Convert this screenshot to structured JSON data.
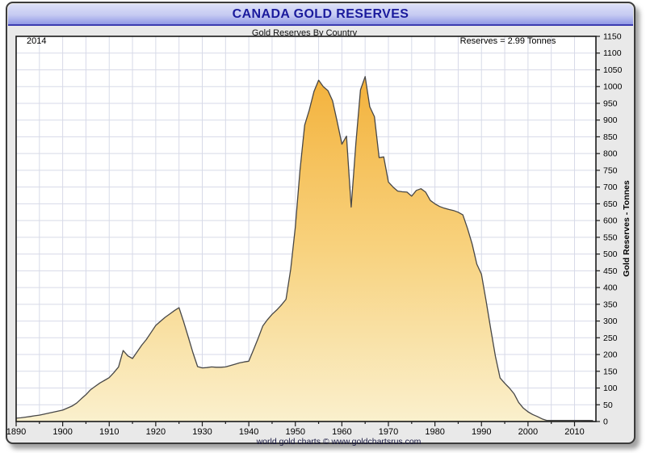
{
  "header": {
    "title": "CANADA GOLD RESERVES"
  },
  "subtitle": "Gold Reserves By Country",
  "annotations": {
    "year_label": "2014",
    "reserves_label": "Reserves = 2.99 Tonnes"
  },
  "footer": "world gold charts © www.goldchartsrus.com",
  "colors": {
    "header_text": "#1a1a9c",
    "panel_bg": "#e9e9e9",
    "grid": "#d7dae8",
    "plot_border": "#1a1a1a",
    "area_top": "#f3b23c",
    "area_mid": "#f8d27e",
    "area_bottom": "#faf0cd",
    "line": "#474747"
  },
  "chart_data": {
    "type": "area",
    "title": "CANADA GOLD RESERVES",
    "subtitle": "Gold Reserves By Country",
    "xlabel": "",
    "ylabel": "Gold Reserves - Tonnes",
    "xlim": [
      1890,
      2014
    ],
    "ylim": [
      0,
      1150
    ],
    "grid": true,
    "legend": "none",
    "x_tick_step": 10,
    "x_minor_tick_step": 5,
    "y_tick_step": 50,
    "x_ticks": [
      1890,
      1900,
      1910,
      1920,
      1930,
      1940,
      1950,
      1960,
      1970,
      1980,
      1990,
      2000,
      2010
    ],
    "y_ticks": [
      0,
      50,
      100,
      150,
      200,
      250,
      300,
      350,
      400,
      450,
      500,
      550,
      600,
      650,
      700,
      750,
      800,
      850,
      900,
      950,
      1000,
      1050,
      1100,
      1150
    ],
    "series": [
      {
        "name": "Canada Gold Reserves (Tonnes)",
        "points": [
          [
            1890,
            10
          ],
          [
            1891,
            11
          ],
          [
            1892,
            13
          ],
          [
            1893,
            15
          ],
          [
            1894,
            17
          ],
          [
            1895,
            19
          ],
          [
            1896,
            22
          ],
          [
            1897,
            25
          ],
          [
            1898,
            28
          ],
          [
            1899,
            31
          ],
          [
            1900,
            34
          ],
          [
            1901,
            40
          ],
          [
            1902,
            46
          ],
          [
            1903,
            55
          ],
          [
            1904,
            68
          ],
          [
            1905,
            80
          ],
          [
            1906,
            95
          ],
          [
            1907,
            105
          ],
          [
            1908,
            115
          ],
          [
            1909,
            123
          ],
          [
            1910,
            131
          ],
          [
            1911,
            146
          ],
          [
            1912,
            163
          ],
          [
            1913,
            212
          ],
          [
            1914,
            196
          ],
          [
            1915,
            188
          ],
          [
            1916,
            208
          ],
          [
            1917,
            228
          ],
          [
            1918,
            245
          ],
          [
            1919,
            266
          ],
          [
            1920,
            287
          ],
          [
            1921,
            299
          ],
          [
            1922,
            311
          ],
          [
            1923,
            321
          ],
          [
            1924,
            331
          ],
          [
            1925,
            340
          ],
          [
            1926,
            298
          ],
          [
            1927,
            252
          ],
          [
            1928,
            205
          ],
          [
            1929,
            164
          ],
          [
            1930,
            160
          ],
          [
            1931,
            161
          ],
          [
            1932,
            163
          ],
          [
            1933,
            162
          ],
          [
            1934,
            162
          ],
          [
            1935,
            163
          ],
          [
            1936,
            167
          ],
          [
            1937,
            171
          ],
          [
            1938,
            175
          ],
          [
            1939,
            178
          ],
          [
            1940,
            180
          ],
          [
            1941,
            214
          ],
          [
            1942,
            248
          ],
          [
            1943,
            285
          ],
          [
            1944,
            304
          ],
          [
            1945,
            320
          ],
          [
            1946,
            333
          ],
          [
            1947,
            348
          ],
          [
            1948,
            365
          ],
          [
            1949,
            455
          ],
          [
            1950,
            580
          ],
          [
            1951,
            750
          ],
          [
            1952,
            885
          ],
          [
            1953,
            930
          ],
          [
            1954,
            985
          ],
          [
            1955,
            1019
          ],
          [
            1956,
            1000
          ],
          [
            1957,
            988
          ],
          [
            1958,
            958
          ],
          [
            1959,
            895
          ],
          [
            1960,
            828
          ],
          [
            1961,
            852
          ],
          [
            1962,
            640
          ],
          [
            1963,
            830
          ],
          [
            1964,
            990
          ],
          [
            1965,
            1030
          ],
          [
            1966,
            940
          ],
          [
            1967,
            910
          ],
          [
            1968,
            788
          ],
          [
            1969,
            790
          ],
          [
            1970,
            715
          ],
          [
            1971,
            700
          ],
          [
            1972,
            688
          ],
          [
            1973,
            686
          ],
          [
            1974,
            685
          ],
          [
            1975,
            673
          ],
          [
            1976,
            690
          ],
          [
            1977,
            695
          ],
          [
            1978,
            685
          ],
          [
            1979,
            660
          ],
          [
            1980,
            650
          ],
          [
            1981,
            642
          ],
          [
            1982,
            637
          ],
          [
            1983,
            633
          ],
          [
            1984,
            630
          ],
          [
            1985,
            625
          ],
          [
            1986,
            617
          ],
          [
            1987,
            576
          ],
          [
            1988,
            530
          ],
          [
            1989,
            470
          ],
          [
            1990,
            440
          ],
          [
            1991,
            360
          ],
          [
            1992,
            275
          ],
          [
            1993,
            195
          ],
          [
            1994,
            130
          ],
          [
            1995,
            114
          ],
          [
            1996,
            100
          ],
          [
            1997,
            83
          ],
          [
            1998,
            57
          ],
          [
            1999,
            40
          ],
          [
            2000,
            29
          ],
          [
            2001,
            21
          ],
          [
            2002,
            15
          ],
          [
            2003,
            8
          ],
          [
            2004,
            3.4
          ],
          [
            2005,
            3.4
          ],
          [
            2006,
            3.4
          ],
          [
            2007,
            3.4
          ],
          [
            2008,
            3.4
          ],
          [
            2009,
            3.4
          ],
          [
            2010,
            3.4
          ],
          [
            2011,
            3.4
          ],
          [
            2012,
            3.1
          ],
          [
            2013,
            3.1
          ],
          [
            2014,
            2.99
          ]
        ]
      }
    ]
  }
}
